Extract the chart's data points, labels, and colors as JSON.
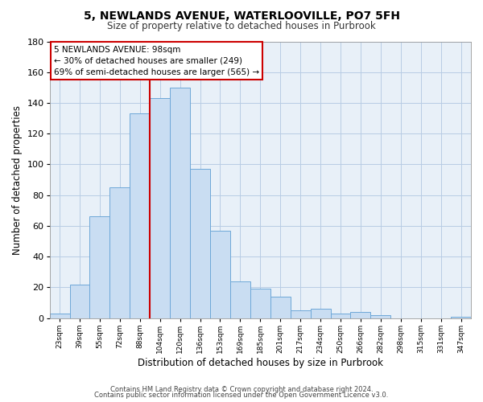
{
  "title": "5, NEWLANDS AVENUE, WATERLOOVILLE, PO7 5FH",
  "subtitle": "Size of property relative to detached houses in Purbrook",
  "xlabel": "Distribution of detached houses by size in Purbrook",
  "ylabel": "Number of detached properties",
  "bar_labels": [
    "23sqm",
    "39sqm",
    "55sqm",
    "72sqm",
    "88sqm",
    "104sqm",
    "120sqm",
    "136sqm",
    "153sqm",
    "169sqm",
    "185sqm",
    "201sqm",
    "217sqm",
    "234sqm",
    "250sqm",
    "266sqm",
    "282sqm",
    "298sqm",
    "315sqm",
    "331sqm",
    "347sqm"
  ],
  "bar_values": [
    3,
    22,
    66,
    85,
    133,
    143,
    150,
    97,
    57,
    24,
    19,
    14,
    5,
    6,
    3,
    4,
    2,
    0,
    0,
    0,
    1
  ],
  "bar_color": "#c9ddf2",
  "bar_edge_color": "#6ea8d8",
  "vline_x": 4.5,
  "vline_color": "#cc0000",
  "ylim": [
    0,
    180
  ],
  "yticks": [
    0,
    20,
    40,
    60,
    80,
    100,
    120,
    140,
    160,
    180
  ],
  "annotation_title": "5 NEWLANDS AVENUE: 98sqm",
  "annotation_line1": "← 30% of detached houses are smaller (249)",
  "annotation_line2": "69% of semi-detached houses are larger (565) →",
  "footer1": "Contains HM Land Registry data © Crown copyright and database right 2024.",
  "footer2": "Contains public sector information licensed under the Open Government Licence v3.0.",
  "background_color": "#ffffff",
  "plot_bg_color": "#e8f0f8",
  "grid_color": "#b8cce4"
}
